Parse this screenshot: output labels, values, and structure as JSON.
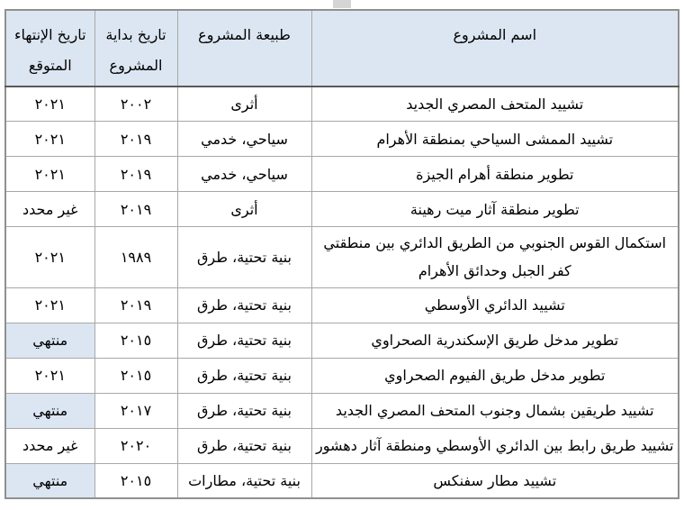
{
  "page": {
    "background": "#ffffff",
    "scroll_tab_color": "#d5d5d5"
  },
  "table": {
    "direction": "rtl",
    "header_bg": "#dce6f2",
    "highlight_bg": "#dce6f2",
    "grid_border_color": "#a8a8a8",
    "header_rule_color": "#595959",
    "columns": [
      {
        "key": "name",
        "label": "اسم المشروع"
      },
      {
        "key": "nature",
        "label": "طبيعة المشروع"
      },
      {
        "key": "start",
        "label": "تاريخ بداية المشروع"
      },
      {
        "key": "end",
        "label": "تاريخ الإنتهاء المتوقع"
      }
    ],
    "rows": [
      {
        "name": "تشييد المتحف المصري الجديد",
        "nature": "أثرى",
        "start": "٢٠٠٢",
        "end": "٢٠٢١",
        "end_highlight": false
      },
      {
        "name": "تشييد الممشى السياحي بمنطقة الأهرام",
        "nature": "سياحي، خدمي",
        "start": "٢٠١٩",
        "end": "٢٠٢١",
        "end_highlight": false
      },
      {
        "name": "تطوير منطقة أهرام الجيزة",
        "nature": "سياحي، خدمي",
        "start": "٢٠١٩",
        "end": "٢٠٢١",
        "end_highlight": false
      },
      {
        "name": "تطوير منطقة آثار ميت رهينة",
        "nature": "أثرى",
        "start": "٢٠١٩",
        "end": "غير محدد",
        "end_highlight": false
      },
      {
        "name": "استكمال القوس الجنوبي من الطريق الدائري بين منطقتي كفر الجبل وحدائق الأهرام",
        "nature": "بنية تحتية، طرق",
        "start": "١٩٨٩",
        "end": "٢٠٢١",
        "end_highlight": false
      },
      {
        "name": "تشييد الدائري الأوسطي",
        "nature": "بنية تحتية، طرق",
        "start": "٢٠١٩",
        "end": "٢٠٢١",
        "end_highlight": false
      },
      {
        "name": "تطوير مدخل طريق الإسكندرية الصحراوي",
        "nature": "بنية تحتية، طرق",
        "start": "٢٠١٥",
        "end": "منتهي",
        "end_highlight": true
      },
      {
        "name": "تطوير مدخل طريق الفيوم الصحراوي",
        "nature": "بنية تحتية، طرق",
        "start": "٢٠١٥",
        "end": "٢٠٢١",
        "end_highlight": false
      },
      {
        "name": "تشييد طريقين بشمال وجنوب المتحف المصري الجديد",
        "nature": "بنية تحتية، طرق",
        "start": "٢٠١٧",
        "end": "منتهي",
        "end_highlight": true
      },
      {
        "name": "تشييد طريق رابط بين الدائري الأوسطي ومنطقة آثار دهشور",
        "nature": "بنية تحتية، طرق",
        "start": "٢٠٢٠",
        "end": "غير محدد",
        "end_highlight": false
      },
      {
        "name": "تشييد مطار سفنكس",
        "nature": "بنية تحتية، مطارات",
        "start": "٢٠١٥",
        "end": "منتهي",
        "end_highlight": true
      }
    ]
  }
}
